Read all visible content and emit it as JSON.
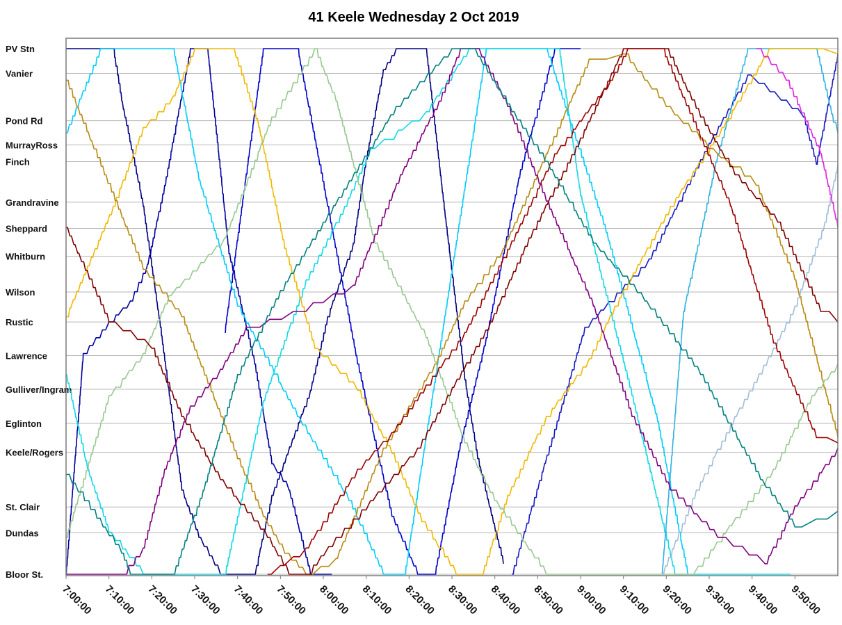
{
  "chart_data": {
    "type": "line",
    "title": "41 Keele Wednesday 2 Oct 2019",
    "xlabel": "",
    "ylabel": "",
    "x_range": [
      "7:00:00",
      "10:00:00"
    ],
    "x_ticks": [
      "7:00:00",
      "7:10:00",
      "7:20:00",
      "7:30:00",
      "7:40:00",
      "7:50:00",
      "8:00:00",
      "8:10:00",
      "8:20:00",
      "8:30:00",
      "8:40:00",
      "8:50:00",
      "9:00:00",
      "9:10:00",
      "9:20:00",
      "9:30:00",
      "9:40:00",
      "9:50:00"
    ],
    "stops": [
      {
        "name": "PV Stn",
        "pos": 0
      },
      {
        "name": "Vanier",
        "pos": 4.7
      },
      {
        "name": "Pond Rd",
        "pos": 13.7
      },
      {
        "name": "MurrayRoss",
        "pos": 18.3
      },
      {
        "name": "Finch",
        "pos": 21.5
      },
      {
        "name": "Grandravine",
        "pos": 29.2
      },
      {
        "name": "Sheppard",
        "pos": 34.2
      },
      {
        "name": "Whitburn",
        "pos": 39.5
      },
      {
        "name": "Wilson",
        "pos": 46.3
      },
      {
        "name": "Rustic",
        "pos": 52
      },
      {
        "name": "Lawrence",
        "pos": 58.4
      },
      {
        "name": "Gulliver/Ingram",
        "pos": 64.8
      },
      {
        "name": "Eglinton",
        "pos": 71.3
      },
      {
        "name": "Keele/Rogers",
        "pos": 76.8
      },
      {
        "name": "St. Clair",
        "pos": 87.2
      },
      {
        "name": "Dundas",
        "pos": 92.1
      },
      {
        "name": "Bloor St.",
        "pos": 100
      }
    ],
    "grid": true,
    "legend": "none",
    "series": [
      {
        "color": "#0000a0",
        "points": [
          [
            0,
            100
          ],
          [
            4,
            58
          ],
          [
            10,
            52
          ],
          [
            15,
            48
          ],
          [
            19,
            41
          ],
          [
            23,
            26
          ],
          [
            29,
            0
          ],
          [
            33,
            0
          ],
          [
            38,
            39
          ],
          [
            44,
            60
          ],
          [
            48,
            79
          ],
          [
            52,
            84
          ],
          [
            57,
            100
          ],
          [
            62,
            100
          ]
        ]
      },
      {
        "color": "#000080",
        "points": [
          [
            0,
            0
          ],
          [
            11,
            0
          ],
          [
            13,
            10
          ],
          [
            18,
            30
          ],
          [
            22,
            53
          ],
          [
            27,
            84
          ],
          [
            31,
            93
          ],
          [
            36,
            100
          ],
          [
            44,
            100
          ],
          [
            48,
            85
          ],
          [
            57,
            65
          ],
          [
            61,
            51
          ],
          [
            67,
            37
          ],
          [
            70,
            21
          ],
          [
            74,
            4
          ],
          [
            77,
            0
          ],
          [
            84,
            0
          ],
          [
            88,
            29
          ],
          [
            93,
            63
          ],
          [
            96,
            78
          ],
          [
            102,
            98
          ]
        ]
      },
      {
        "color": "#0000cc",
        "points": [
          [
            37,
            54
          ],
          [
            46,
            0
          ],
          [
            54,
            0
          ],
          [
            68,
            60
          ],
          [
            76,
            89
          ],
          [
            82,
            100
          ],
          [
            86,
            100
          ],
          [
            92,
            75
          ],
          [
            98,
            55
          ],
          [
            106,
            23
          ],
          [
            114,
            0
          ],
          [
            120,
            0
          ]
        ]
      },
      {
        "color": "#1818c0",
        "points": [
          [
            104,
            100
          ],
          [
            121,
            53
          ],
          [
            136,
            40
          ],
          [
            150,
            18
          ],
          [
            159,
            5
          ],
          [
            172,
            13
          ],
          [
            175,
            22
          ],
          [
            180,
            1
          ]
        ]
      },
      {
        "color": "#00ccff",
        "points": [
          [
            0,
            16
          ],
          [
            8,
            0
          ],
          [
            25,
            0
          ],
          [
            31,
            25
          ],
          [
            40,
            49
          ],
          [
            54,
            70
          ],
          [
            66,
            86
          ],
          [
            74,
            100
          ],
          [
            79,
            100
          ],
          [
            98,
            0
          ],
          [
            112,
            0
          ],
          [
            126,
            35
          ],
          [
            138,
            71
          ],
          [
            143,
            92
          ],
          [
            145,
            100
          ]
        ]
      },
      {
        "color": "#10d8e8",
        "points": [
          [
            0,
            62
          ],
          [
            5,
            80
          ],
          [
            10,
            92
          ],
          [
            18,
            100
          ],
          [
            37,
            100
          ],
          [
            46,
            67
          ],
          [
            56,
            44
          ],
          [
            65,
            30
          ],
          [
            71,
            19
          ],
          [
            84,
            12
          ],
          [
            94,
            0
          ],
          [
            115,
            0
          ],
          [
            120,
            28
          ],
          [
            132,
            66
          ],
          [
            142,
            100
          ],
          [
            169,
            100
          ]
        ]
      },
      {
        "color": "#30b0e0",
        "points": [
          [
            139,
            100
          ],
          [
            144,
            50
          ],
          [
            152,
            20
          ],
          [
            159,
            0
          ],
          [
            175,
            0
          ],
          [
            179,
            14
          ],
          [
            180,
            16
          ]
        ]
      },
      {
        "color": "#f0b800",
        "points": [
          [
            0,
            51
          ],
          [
            11,
            30
          ],
          [
            18,
            15
          ],
          [
            25,
            9
          ],
          [
            30,
            0
          ],
          [
            39,
            0
          ],
          [
            45,
            15
          ],
          [
            51,
            38
          ],
          [
            58,
            57
          ],
          [
            68,
            65
          ],
          [
            76,
            77
          ],
          [
            83,
            90
          ],
          [
            91,
            100
          ],
          [
            97,
            100
          ],
          [
            103,
            85
          ],
          [
            112,
            70
          ],
          [
            122,
            59
          ],
          [
            128,
            49
          ],
          [
            141,
            30
          ],
          [
            153,
            15
          ],
          [
            164,
            0
          ],
          [
            173,
            0
          ],
          [
            180,
            1
          ]
        ]
      },
      {
        "color": "#b88a10",
        "points": [
          [
            0,
            6
          ],
          [
            9,
            24
          ],
          [
            18,
            42
          ],
          [
            27,
            51
          ],
          [
            40,
            78
          ],
          [
            46,
            89
          ],
          [
            51,
            96
          ],
          [
            56,
            100
          ],
          [
            63,
            97
          ],
          [
            74,
            76
          ],
          [
            86,
            60
          ],
          [
            93,
            48
          ],
          [
            102,
            38
          ],
          [
            112,
            20
          ],
          [
            122,
            2
          ],
          [
            130,
            1
          ],
          [
            140,
            11
          ],
          [
            150,
            19
          ],
          [
            161,
            26
          ],
          [
            170,
            44
          ],
          [
            180,
            74
          ]
        ]
      },
      {
        "color": "#98c890",
        "points": [
          [
            0,
            93
          ],
          [
            10,
            66
          ],
          [
            18,
            58
          ],
          [
            24,
            47
          ],
          [
            37,
            36
          ],
          [
            48,
            13
          ],
          [
            58,
            0
          ],
          [
            63,
            10
          ],
          [
            72,
            37
          ],
          [
            84,
            55
          ],
          [
            93,
            75
          ],
          [
            100,
            86
          ],
          [
            112,
            100
          ],
          [
            133,
            100
          ],
          [
            146,
            100
          ],
          [
            165,
            80
          ],
          [
            174,
            66
          ],
          [
            180,
            60
          ]
        ]
      },
      {
        "color": "#a0bcd8",
        "points": [
          [
            139,
            100
          ],
          [
            147,
            84
          ],
          [
            156,
            70
          ],
          [
            165,
            57
          ],
          [
            170,
            49
          ],
          [
            177,
            33
          ],
          [
            180,
            22
          ]
        ]
      },
      {
        "color": "#800000",
        "points": [
          [
            0,
            34
          ],
          [
            10,
            52
          ],
          [
            20,
            57
          ],
          [
            27,
            70
          ],
          [
            36,
            82
          ],
          [
            47,
            93
          ],
          [
            52,
            100
          ],
          [
            56,
            100
          ],
          [
            63,
            93
          ],
          [
            71,
            86
          ],
          [
            82,
            76
          ],
          [
            89,
            66
          ],
          [
            99,
            52
          ],
          [
            108,
            36
          ],
          [
            120,
            17
          ],
          [
            130,
            0
          ],
          [
            140,
            0
          ],
          [
            148,
            13
          ],
          [
            156,
            24
          ],
          [
            166,
            33
          ],
          [
            176,
            50
          ],
          [
            180,
            52
          ]
        ]
      },
      {
        "color": "#9c0000",
        "points": [
          [
            47,
            100
          ],
          [
            56,
            95
          ],
          [
            68,
            80
          ],
          [
            76,
            73
          ],
          [
            84,
            64
          ],
          [
            93,
            54
          ],
          [
            105,
            35
          ],
          [
            114,
            20
          ],
          [
            127,
            6
          ],
          [
            131,
            0
          ],
          [
            139,
            0
          ],
          [
            148,
            17
          ],
          [
            155,
            30
          ],
          [
            165,
            56
          ],
          [
            175,
            74
          ],
          [
            180,
            75
          ]
        ]
      },
      {
        "color": "#800080",
        "points": [
          [
            0,
            100
          ],
          [
            13,
            100
          ],
          [
            18,
            95
          ],
          [
            23,
            80
          ],
          [
            29,
            68
          ],
          [
            36,
            61
          ],
          [
            42,
            53
          ],
          [
            53,
            50
          ],
          [
            67,
            45
          ],
          [
            78,
            24
          ],
          [
            87,
            10
          ],
          [
            92,
            0
          ],
          [
            96,
            0
          ],
          [
            103,
            11
          ],
          [
            112,
            29
          ],
          [
            123,
            49
          ],
          [
            132,
            70
          ],
          [
            141,
            84
          ],
          [
            152,
            93
          ],
          [
            163,
            98
          ],
          [
            170,
            87
          ],
          [
            180,
            76
          ]
        ]
      },
      {
        "color": "#e020e0",
        "points": [
          [
            161,
            0
          ],
          [
            168,
            6
          ],
          [
            176,
            20
          ],
          [
            180,
            34
          ]
        ]
      },
      {
        "color": "#008080",
        "points": [
          [
            0,
            81
          ],
          [
            13,
            96
          ],
          [
            15,
            100
          ],
          [
            25,
            100
          ],
          [
            32,
            84
          ],
          [
            40,
            62
          ],
          [
            50,
            46
          ],
          [
            60,
            33
          ],
          [
            77,
            11
          ],
          [
            90,
            0
          ],
          [
            95,
            0
          ],
          [
            104,
            12
          ],
          [
            113,
            23
          ],
          [
            123,
            37
          ],
          [
            135,
            48
          ],
          [
            148,
            62
          ],
          [
            162,
            82
          ],
          [
            170,
            91
          ],
          [
            180,
            88
          ]
        ]
      }
    ]
  }
}
